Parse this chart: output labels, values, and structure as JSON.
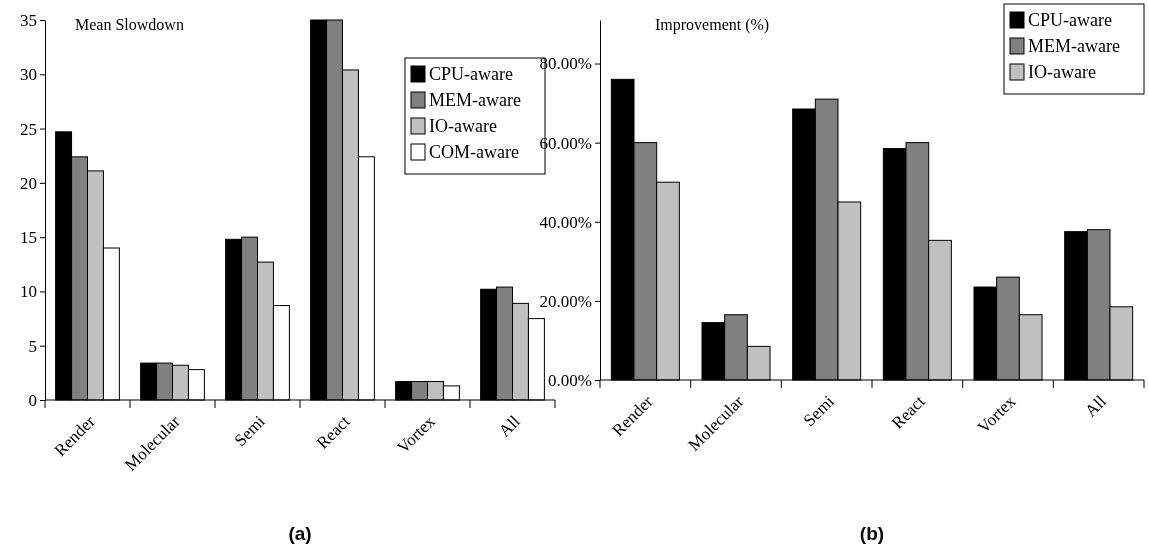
{
  "chart_data": [
    {
      "type": "bar",
      "title": "Mean Slowdown",
      "categories": [
        "Render",
        "Molecular",
        "Semi",
        "React",
        "Vortex",
        "All"
      ],
      "series": [
        {
          "name": "CPU-aware",
          "color": "#000000",
          "values": [
            24.7,
            3.4,
            14.8,
            35,
            1.7,
            10.2
          ]
        },
        {
          "name": "MEM-aware",
          "color": "#808080",
          "values": [
            22.4,
            3.4,
            15.0,
            35,
            1.7,
            10.4
          ]
        },
        {
          "name": "IO-aware",
          "color": "#c0c0c0",
          "values": [
            21.1,
            3.2,
            12.7,
            30.4,
            1.7,
            8.9
          ]
        },
        {
          "name": "COM-aware",
          "color": "#ffffff",
          "values": [
            14.0,
            2.8,
            8.7,
            22.4,
            1.3,
            7.5
          ]
        }
      ],
      "ylim": [
        0,
        35
      ],
      "yticks": [
        0,
        5,
        10,
        15,
        20,
        25,
        30,
        35
      ],
      "grid": false,
      "legend": "top right",
      "annotations": [
        "(a)"
      ]
    },
    {
      "type": "bar",
      "title": "Improvement (%)",
      "categories": [
        "Render",
        "Molecular",
        "Semi",
        "React",
        "Vortex",
        "All"
      ],
      "series": [
        {
          "name": "CPU-aware",
          "color": "#000000",
          "values": [
            76,
            14.5,
            68.5,
            58.5,
            23.5,
            37.5
          ]
        },
        {
          "name": "MEM-aware",
          "color": "#808080",
          "values": [
            60,
            16.5,
            71,
            60,
            26,
            38
          ]
        },
        {
          "name": "IO-aware",
          "color": "#c0c0c0",
          "values": [
            50,
            8.5,
            45,
            35.3,
            16.5,
            18.5
          ]
        }
      ],
      "ylim": [
        0,
        91
      ],
      "yticks": [
        {
          "value": 0,
          "label": "0.00%"
        },
        {
          "value": 20,
          "label": "20.00%"
        },
        {
          "value": 40,
          "label": "40.00%"
        },
        {
          "value": 60,
          "label": "60.00%"
        },
        {
          "value": 80,
          "label": "80.00%"
        }
      ],
      "grid": false,
      "legend": "top right",
      "annotations": [
        "(b)"
      ]
    }
  ]
}
